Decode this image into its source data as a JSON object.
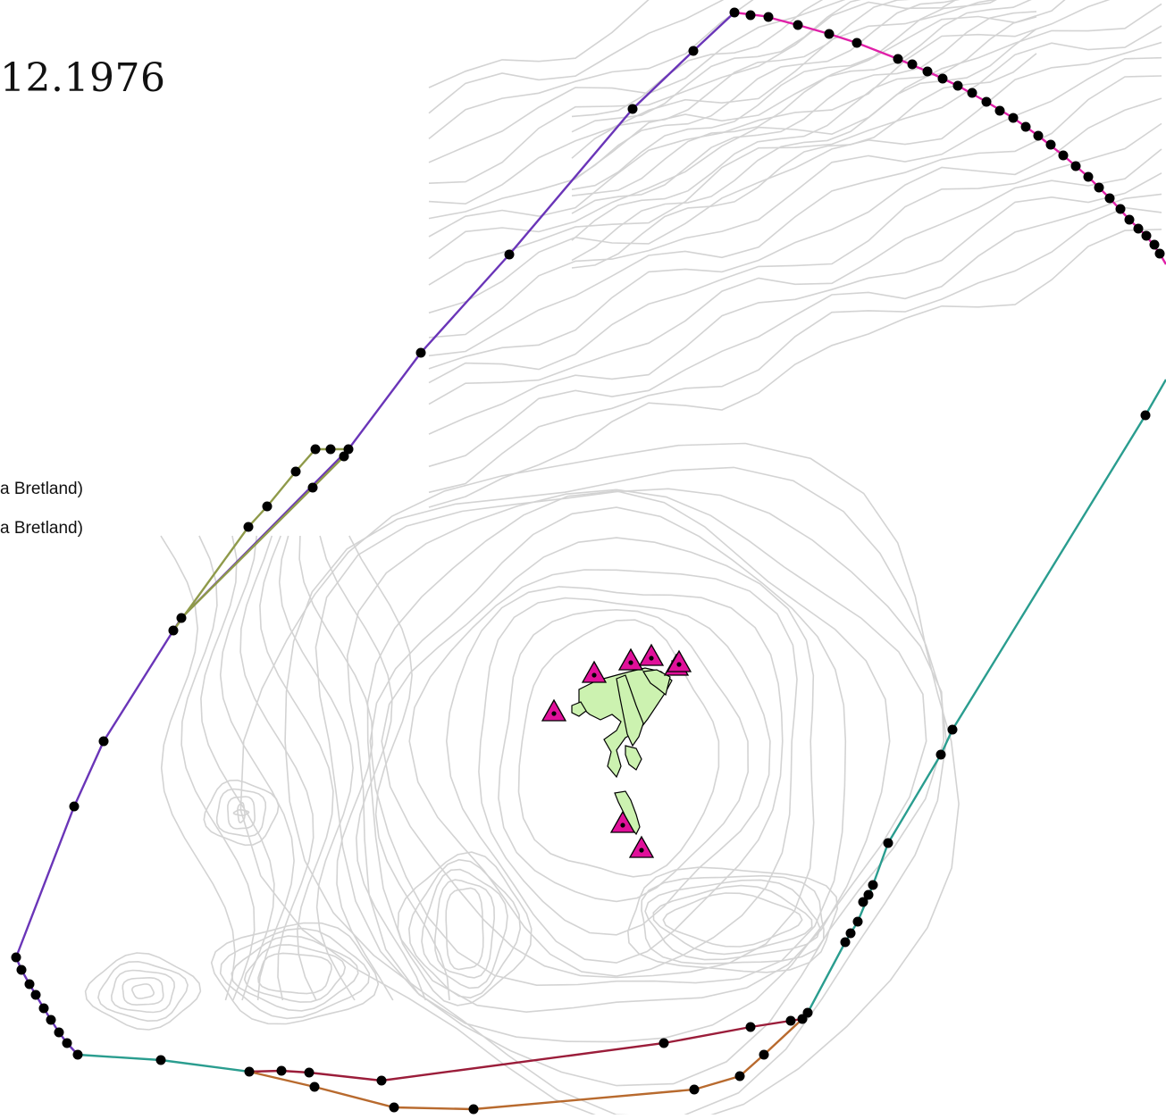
{
  "map": {
    "title": "12.1976",
    "legend": {
      "items": [
        {
          "label": "a Bretland)"
        },
        {
          "label": "a Bretland)"
        }
      ]
    },
    "colors": {
      "background": "#ffffff",
      "bathymetry_contours": "#d3d3d3",
      "land_fill": "#ccf2b0",
      "land_outline": "#000000",
      "baseline_point_fill": "#000000",
      "station_marker_fill": "#e0109a",
      "station_marker_outline": "#000000",
      "boundary_northwest": "#6a35b8",
      "boundary_north": "#e020a8",
      "boundary_east_southwest": "#2a9d8f",
      "boundary_south_inner": "#9b1d3a",
      "boundary_south_outer": "#b86a2e",
      "boundary_olive": "#8f9a4a"
    },
    "features": {
      "land": "Faroe Islands (landmass outlines)",
      "bathymetry": "depth contour lines",
      "markers": "triangle station markers with centre dot",
      "points": "black boundary vertex points"
    }
  }
}
